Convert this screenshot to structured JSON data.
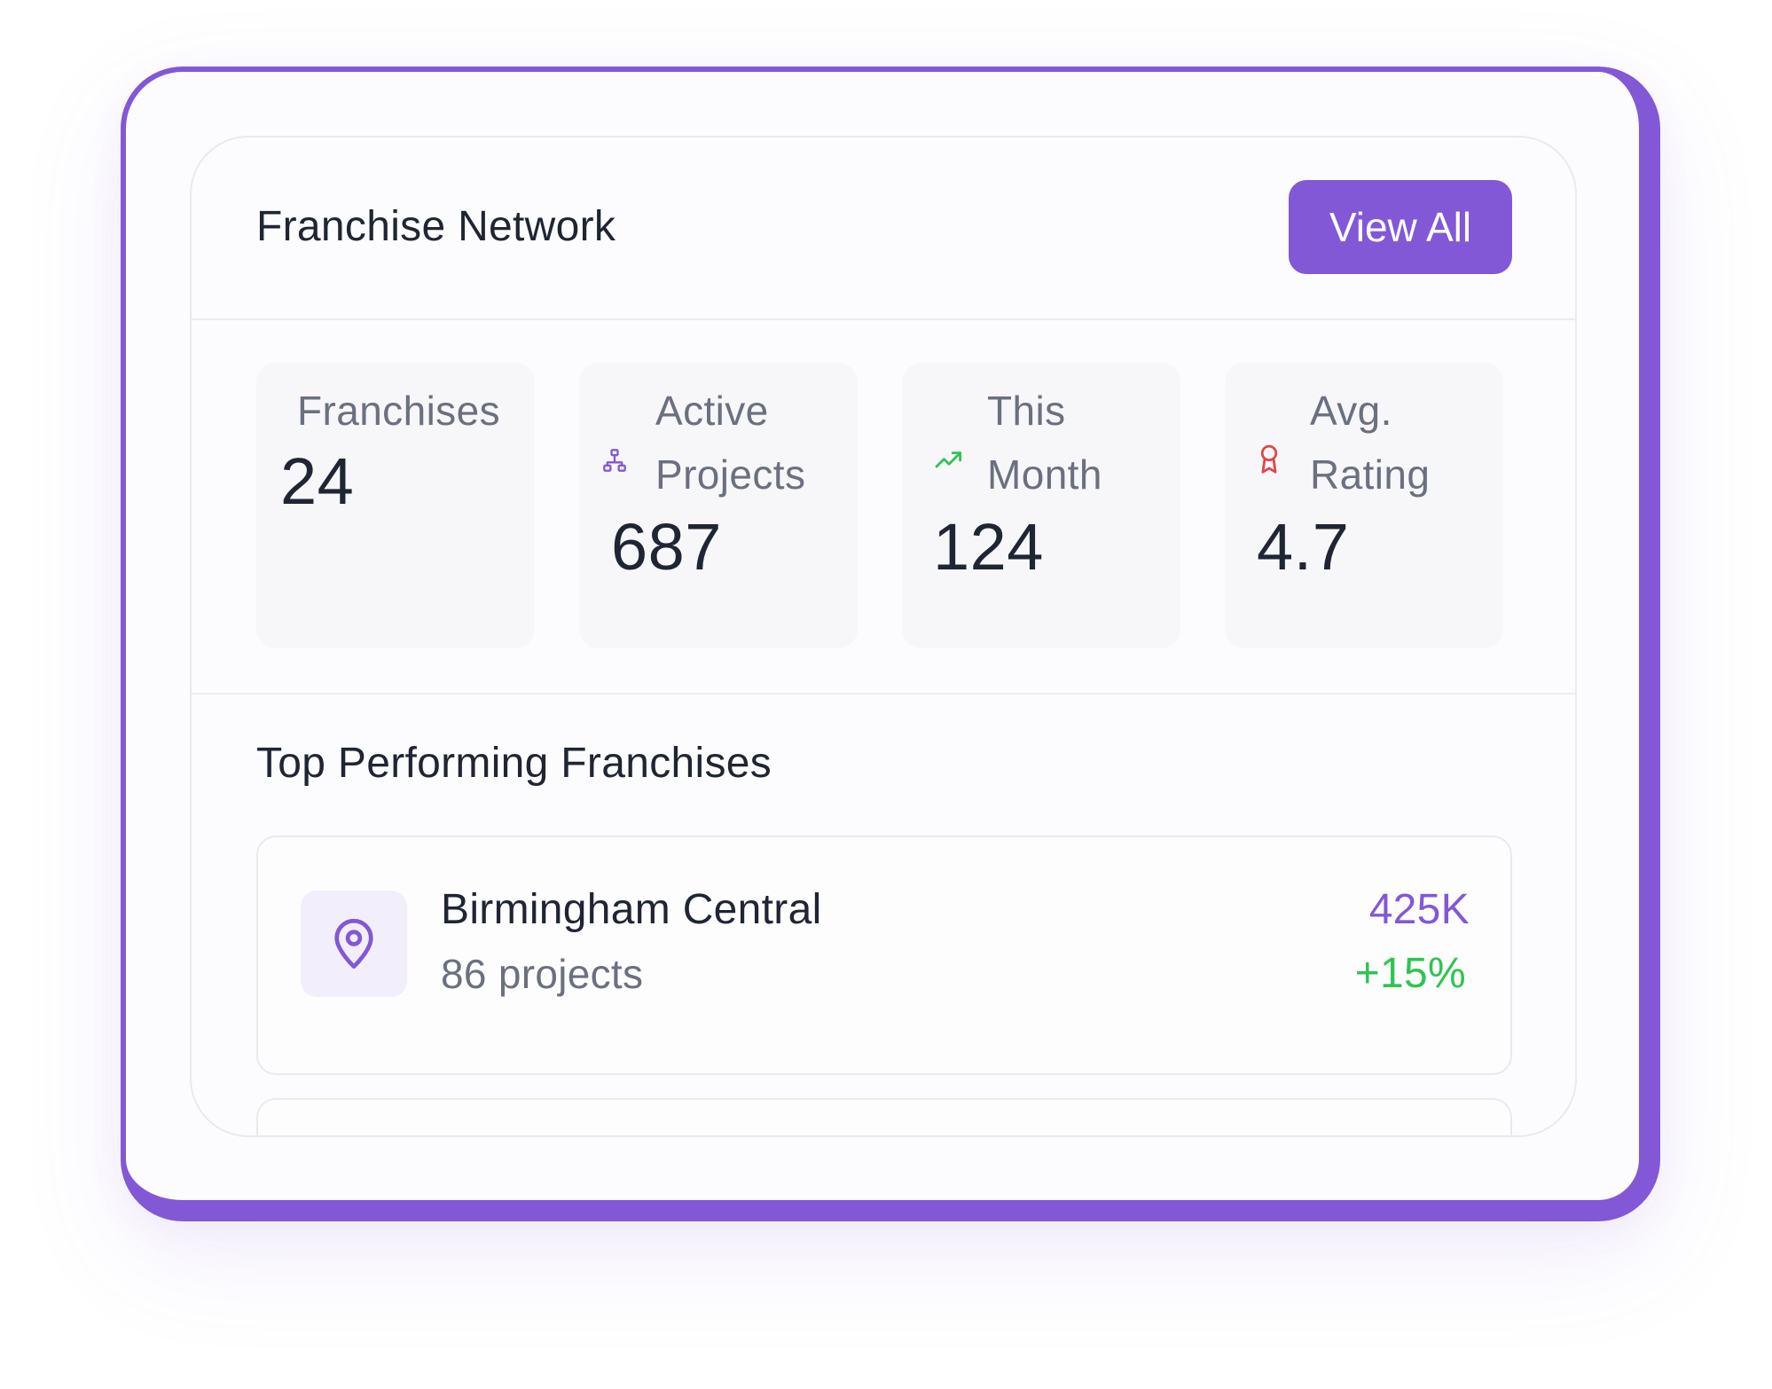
{
  "header": {
    "title": "Franchise Network",
    "view_all_label": "View All"
  },
  "stats": [
    {
      "label": "Franchises",
      "value": "24",
      "icon": "none"
    },
    {
      "label_line1": "Active",
      "label_line2": "Projects",
      "value": "687",
      "icon": "sitemap-icon"
    },
    {
      "label_line1": "This",
      "label_line2": "Month",
      "value": "124",
      "icon": "trending-up-icon"
    },
    {
      "label_line1": "Avg.",
      "label_line2": "Rating",
      "value": "4.7",
      "icon": "award-icon"
    }
  ],
  "top_section": {
    "title": "Top Performing Franchises",
    "items": [
      {
        "name": "Birmingham Central",
        "projects": "86 projects",
        "revenue": "425K",
        "growth": "+15%",
        "icon": "map-pin-icon"
      }
    ]
  },
  "colors": {
    "accent": "#8258d6",
    "positive": "#2fc452",
    "rating_icon": "#e0464b"
  }
}
